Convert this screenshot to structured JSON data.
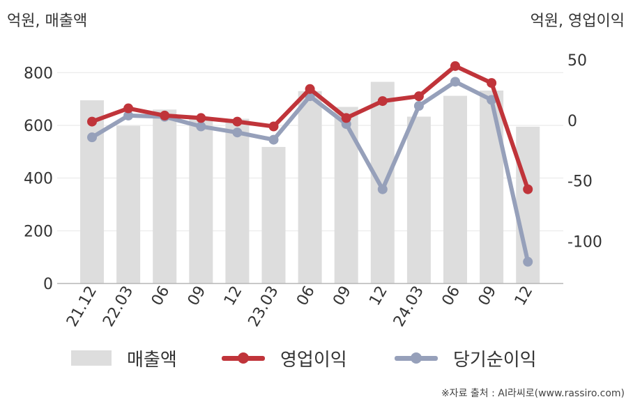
{
  "units": {
    "left": "억원, 매출액",
    "right": "억원, 영업이익"
  },
  "source": "※자료 출처 : AI라씨로(www.rassiro.com)",
  "chart_data": {
    "type": "bar",
    "categories": [
      "21.12",
      "22.03",
      "06",
      "09",
      "12",
      "23.03",
      "06",
      "09",
      "12",
      "24.03",
      "06",
      "09",
      "12"
    ],
    "y_left": {
      "ylim": [
        0,
        880
      ],
      "ticks": [
        0,
        200,
        400,
        600,
        800
      ]
    },
    "y_right": {
      "ylim": [
        -135,
        57
      ],
      "ticks": [
        -100,
        -50,
        0,
        50
      ]
    },
    "grid": true,
    "legend_position": "bottom",
    "series": [
      {
        "name": "매출액",
        "type": "bar",
        "axis": "left",
        "color": "#dddddd",
        "values": [
          695,
          598,
          660,
          630,
          625,
          518,
          730,
          670,
          765,
          633,
          712,
          732,
          595
        ]
      },
      {
        "name": "영업이익",
        "type": "line",
        "axis": "right",
        "color": "#c0343a",
        "values": [
          -1,
          10,
          4,
          2,
          -1,
          -5,
          26,
          2,
          16,
          20,
          45,
          31,
          -57
        ]
      },
      {
        "name": "당기순이익",
        "type": "line",
        "axis": "right",
        "color": "#96a0ba",
        "values": [
          -14,
          4,
          3,
          -5,
          -10,
          -16,
          20,
          -3,
          -57,
          12,
          32,
          17,
          -117
        ]
      }
    ]
  }
}
